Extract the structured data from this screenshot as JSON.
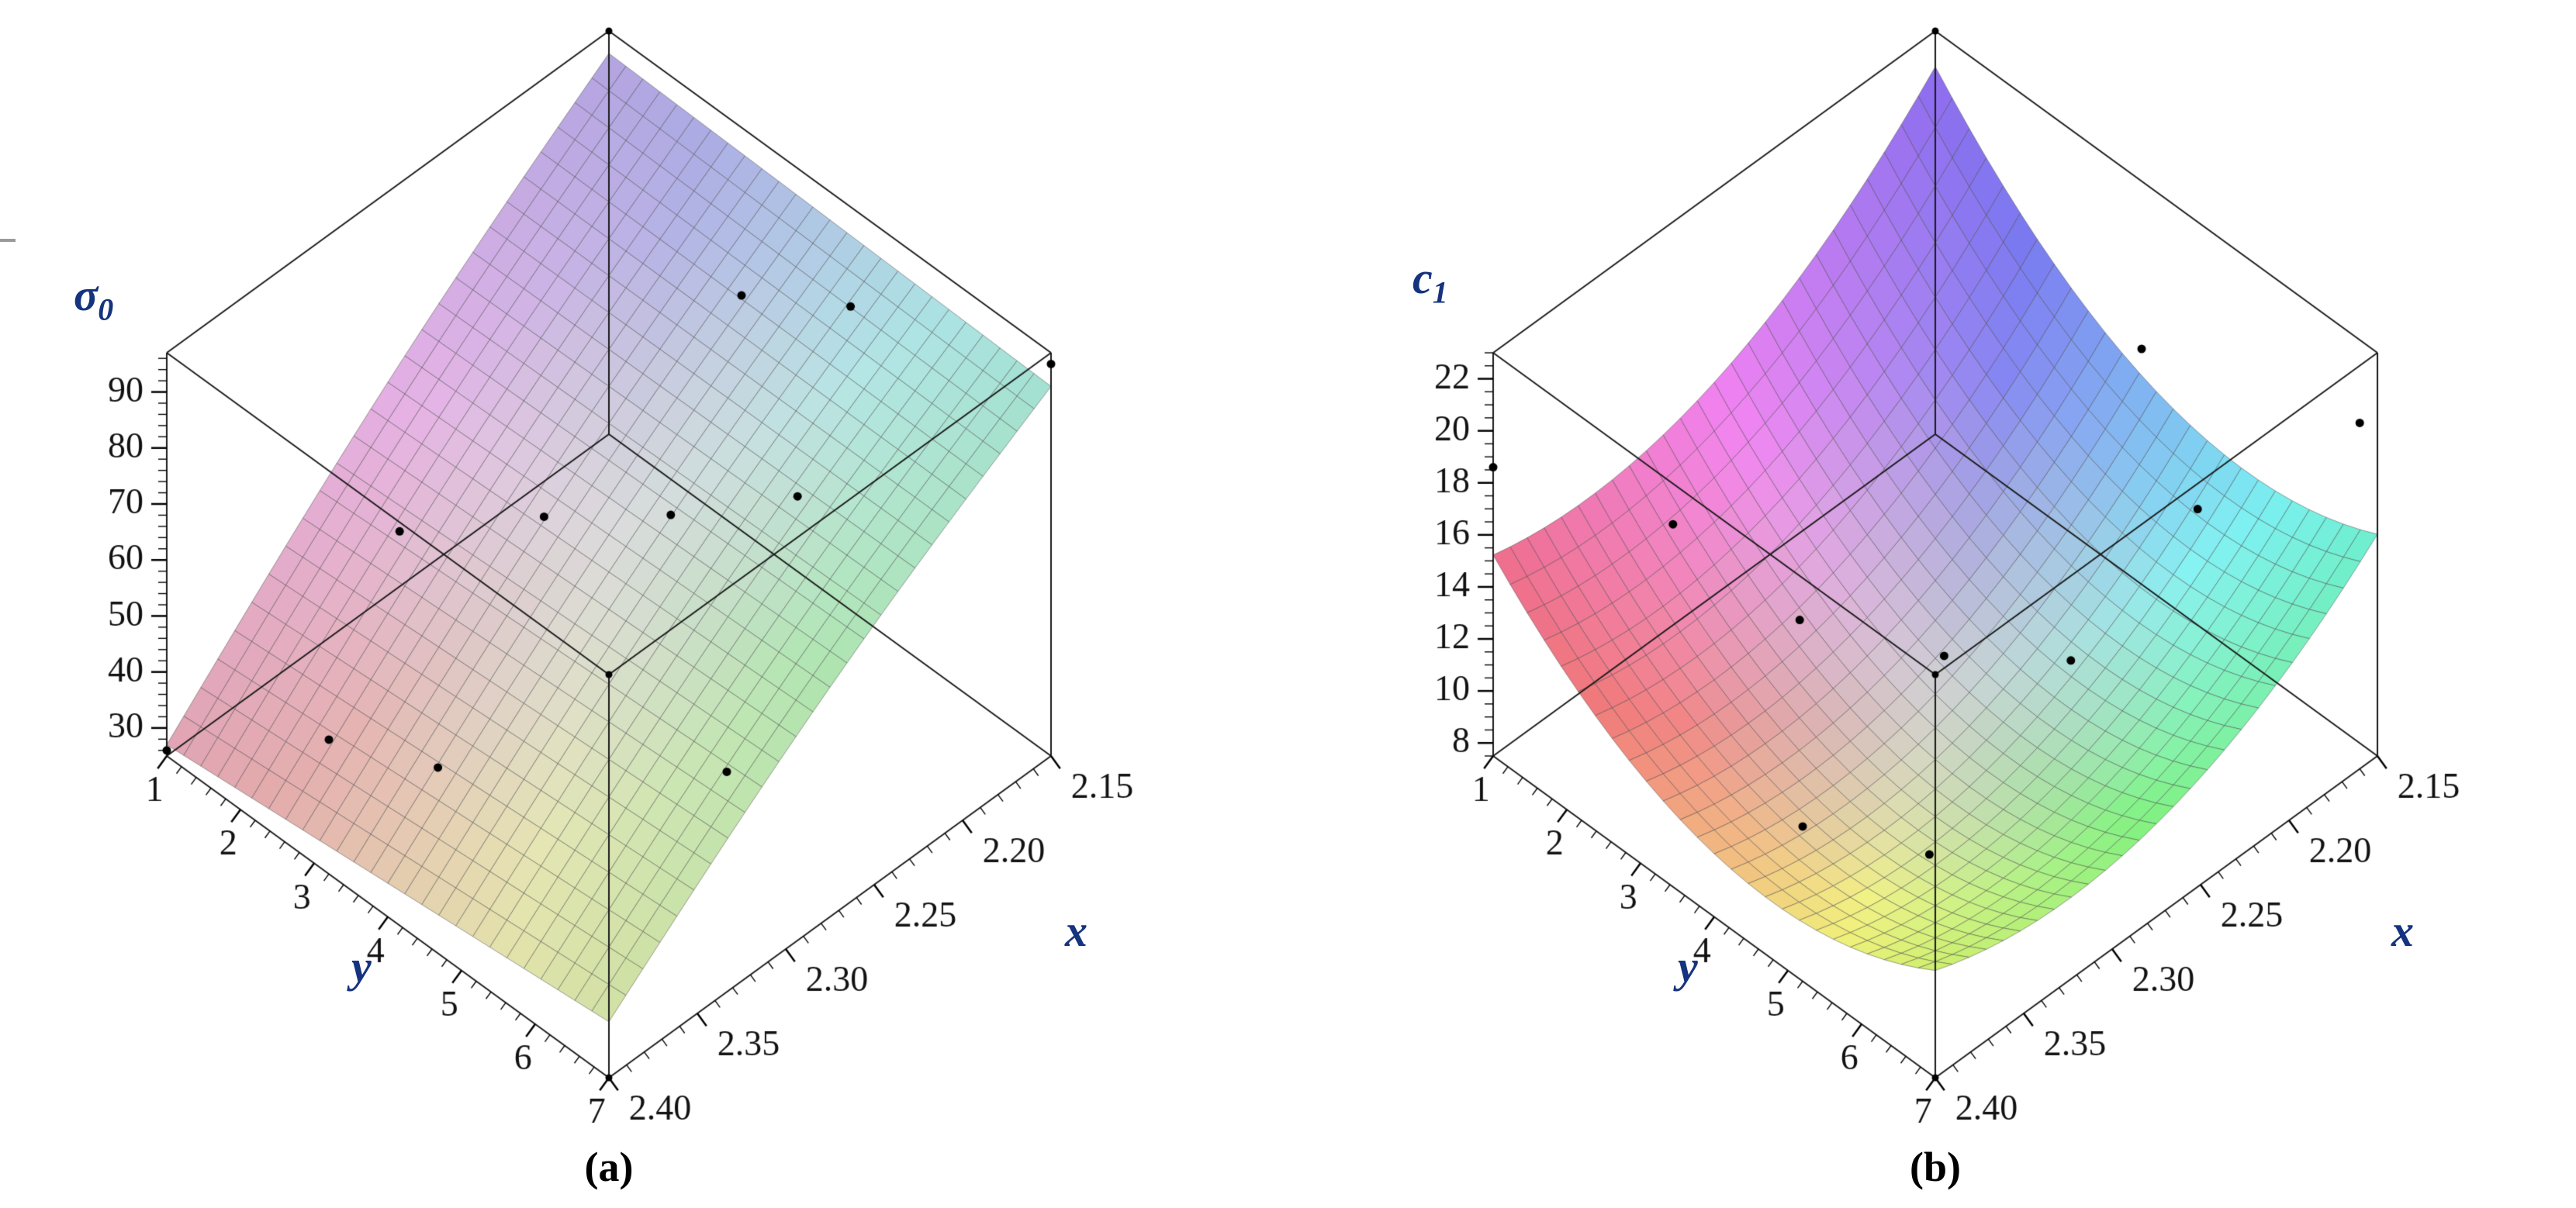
{
  "figure": {
    "background": "#ffffff",
    "label_color": "#16337f",
    "tick_text_color": "#111111",
    "box_color": "#1a1a1a",
    "mesh_color": "rgba(70,70,70,0.5)",
    "point_color": "#000000"
  },
  "chart_data": [
    {
      "id": "a",
      "type": "surface3d",
      "caption": "(a)",
      "zlabel": {
        "symbol": "σ",
        "subscript": "0"
      },
      "xlabel": "x",
      "ylabel": "y",
      "x_range": [
        2.15,
        2.4
      ],
      "y_range": [
        1,
        7
      ],
      "z_range": [
        25,
        97
      ],
      "x_major_ticks": [
        2.15,
        2.2,
        2.25,
        2.3,
        2.35,
        2.4
      ],
      "x_tick_labels": [
        "2.15",
        "2.20",
        "2.25",
        "2.30",
        "2.35",
        "2.40"
      ],
      "x_minor_step": 0.01,
      "y_major_ticks": [
        1,
        2,
        3,
        4,
        5,
        6,
        7
      ],
      "y_tick_labels": [
        "1",
        "2",
        "3",
        "4",
        "5",
        "6",
        "7"
      ],
      "y_minor_step": 0.2,
      "z_major_ticks": [
        30,
        40,
        50,
        60,
        70,
        80,
        90
      ],
      "z_tick_labels": [
        "30",
        "40",
        "50",
        "60",
        "70",
        "80",
        "90"
      ],
      "z_minor_step": 2,
      "surface_model": {
        "type": "bilinear",
        "z_at_xmin_ymin": 93,
        "z_at_xmax_ymin": 27,
        "z_at_xmin_ymax": 91,
        "z_at_xmax_ymax": 35,
        "bow": 3
      },
      "palette": {
        "scheme": "radial-hue",
        "saturation": 0.5,
        "lightness_base": 86,
        "lightness_span": 10
      },
      "points": [
        [
          2.4,
          1,
          26
        ],
        [
          2.35,
          2,
          26
        ],
        [
          2.33,
          3,
          26
        ],
        [
          2.25,
          5,
          26
        ],
        [
          2.31,
          2,
          54
        ],
        [
          2.27,
          3,
          57
        ],
        [
          2.24,
          4,
          60
        ],
        [
          2.21,
          5,
          66
        ],
        [
          2.2,
          4,
          90
        ],
        [
          2.18,
          5,
          93
        ],
        [
          2.15,
          7,
          95
        ]
      ]
    },
    {
      "id": "b",
      "type": "surface3d",
      "caption": "(b)",
      "zlabel": {
        "symbol": "c",
        "subscript": "1"
      },
      "xlabel": "x",
      "ylabel": "y",
      "x_range": [
        2.15,
        2.4
      ],
      "y_range": [
        1,
        7
      ],
      "z_range": [
        7.5,
        23
      ],
      "x_major_ticks": [
        2.15,
        2.2,
        2.25,
        2.3,
        2.35,
        2.4
      ],
      "x_tick_labels": [
        "2.15",
        "2.20",
        "2.25",
        "2.30",
        "2.35",
        "2.40"
      ],
      "x_minor_step": 0.01,
      "y_major_ticks": [
        1,
        2,
        3,
        4,
        5,
        6,
        7
      ],
      "y_tick_labels": [
        "1",
        "2",
        "3",
        "4",
        "5",
        "6",
        "7"
      ],
      "y_minor_step": 0.2,
      "z_major_ticks": [
        8,
        10,
        12,
        14,
        16,
        18,
        20,
        22
      ],
      "z_tick_labels": [
        "8",
        "10",
        "12",
        "14",
        "16",
        "18",
        "20",
        "22"
      ],
      "z_minor_step": 0.5,
      "surface_model": {
        "type": "valley",
        "z0": 7.8,
        "ay": 14,
        "y0": 0.55,
        "ax": 11,
        "x0": 0.7,
        "back": 4.2,
        "left": 2.2
      },
      "palette": {
        "scheme": "radial-hue",
        "saturation": 0.8,
        "lightness_base": 82,
        "lightness_span": 14
      },
      "points": [
        [
          2.4,
          1,
          18.6
        ],
        [
          2.34,
          2,
          15.5
        ],
        [
          2.31,
          3,
          12.4
        ],
        [
          2.27,
          4,
          11.1
        ],
        [
          2.24,
          5,
          11.5
        ],
        [
          2.21,
          6,
          17.9
        ],
        [
          2.2,
          5,
          21.5
        ],
        [
          2.16,
          7,
          20.8
        ],
        [
          2.32,
          5,
          8.0
        ],
        [
          2.35,
          4,
          8.5
        ]
      ]
    }
  ]
}
